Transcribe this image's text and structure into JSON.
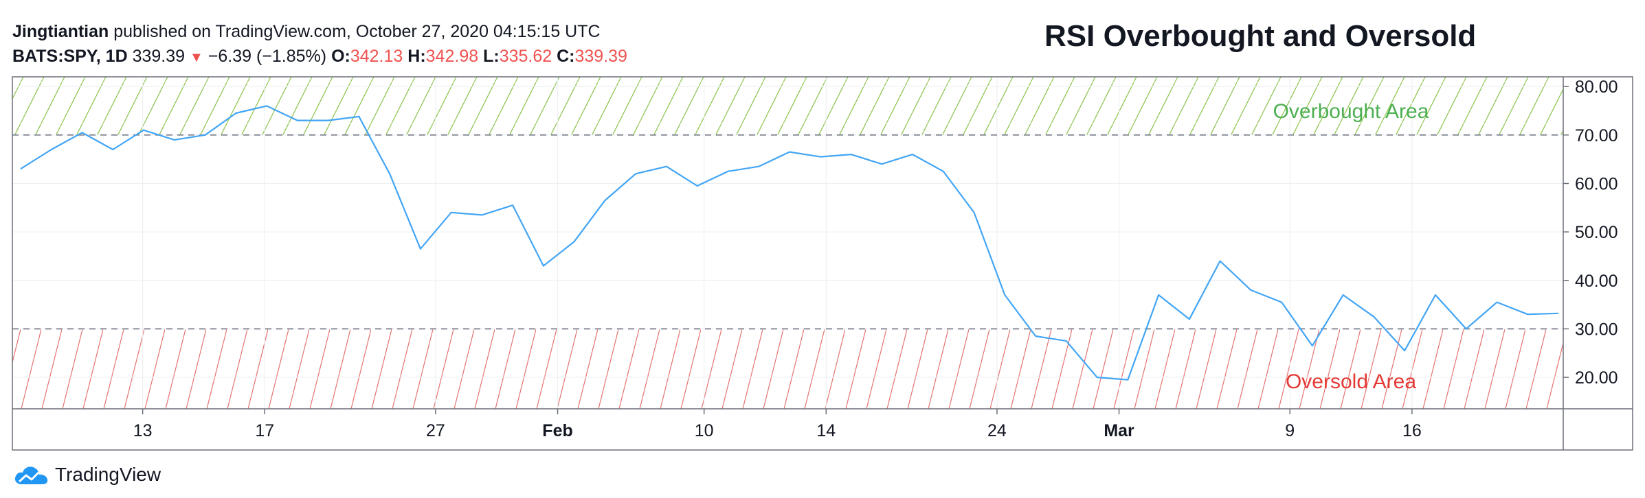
{
  "header": {
    "author": "Jingtiantian",
    "published_text": " published on TradingView.com, October 27, 2020 04:15:15 UTC",
    "symbol": "BATS:SPY, 1D",
    "last": "339.39",
    "change": "−6.39 (−1.85%)",
    "o_label": "O:",
    "o_value": "342.13",
    "h_label": "H:",
    "h_value": "342.98",
    "l_label": "L:",
    "l_value": "335.62",
    "c_label": "C:",
    "c_value": "339.39",
    "accent_down": "#ef5350"
  },
  "footer": {
    "brand": "TradingView",
    "logo_icon": "tradingview-cloud-icon"
  },
  "chart_data": {
    "type": "line",
    "title": "RSI Overbought and Oversold",
    "xlabel": "",
    "ylabel": "",
    "ylim": [
      13.5,
      82.0
    ],
    "x_tick_labels": [
      "13",
      "17",
      "27",
      "Feb",
      "10",
      "14",
      "24",
      "Mar",
      "9",
      "16"
    ],
    "y_tick_labels": [
      "80.00",
      "70.00",
      "60.00",
      "50.00",
      "40.00",
      "30.00",
      "20.00"
    ],
    "y_ticks": [
      80,
      70,
      60,
      50,
      40,
      30,
      20
    ],
    "overbought_level": 70,
    "oversold_level": 30,
    "overbought_label": "Overbought Area",
    "oversold_label": "Oversold Area",
    "series": [
      {
        "color": "#42a5f5",
        "values": [
          63,
          67,
          70.5,
          67,
          71,
          69,
          70,
          74.5,
          76,
          73,
          73,
          73.8,
          62,
          46.5,
          54,
          53.5,
          55.5,
          43,
          48,
          56.5,
          62,
          63.5,
          59.5,
          62.5,
          63.5,
          66.5,
          65.5,
          66,
          64,
          66,
          62.5,
          54,
          37,
          28.5,
          27.5,
          20,
          19.5,
          37,
          32,
          44,
          38,
          35.5,
          26.5,
          37,
          32.5,
          25.5,
          37,
          30,
          35.5,
          33,
          33.2
        ]
      }
    ],
    "overbought_color": "#4caf50",
    "oversold_color": "#e53935",
    "grid": true
  }
}
